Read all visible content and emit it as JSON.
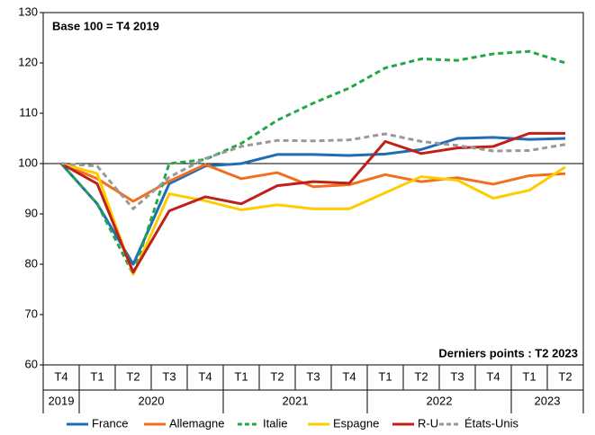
{
  "chart_data": {
    "type": "line",
    "annotations": [
      "Base 100 = T4 2019",
      "Derniers points : T2 2023"
    ],
    "categories": [
      "T4",
      "T1",
      "T2",
      "T3",
      "T4",
      "T1",
      "T2",
      "T3",
      "T4",
      "T1",
      "T2",
      "T3",
      "T4",
      "T1",
      "T2"
    ],
    "year_groups": [
      {
        "label": "2019",
        "count": 1
      },
      {
        "label": "2020",
        "count": 4
      },
      {
        "label": "2021",
        "count": 4
      },
      {
        "label": "2022",
        "count": 4
      },
      {
        "label": "2023",
        "count": 2
      }
    ],
    "ylim": [
      60,
      130
    ],
    "yticks": [
      60,
      70,
      80,
      90,
      100,
      110,
      120,
      130
    ],
    "reference_line": 100,
    "series": [
      {
        "name": "France",
        "color": "#1f6db5",
        "dashed": false,
        "values": [
          100,
          92,
          80,
          96,
          99.5,
          100,
          101.8,
          101.8,
          101.6,
          101.9,
          102.8,
          105,
          105.2,
          104.8,
          105
        ]
      },
      {
        "name": "Allemagne",
        "color": "#f07020",
        "dashed": false,
        "values": [
          100,
          97,
          92.5,
          96.5,
          99.8,
          97,
          98.2,
          95.4,
          95.8,
          97.8,
          96.4,
          97.2,
          95.9,
          97.6,
          98
        ]
      },
      {
        "name": "Italie",
        "color": "#22a846",
        "dashed": true,
        "values": [
          100,
          92,
          78,
          100,
          100.8,
          104,
          108.6,
          112,
          115,
          119,
          120.8,
          120.5,
          121.8,
          122.3,
          120
        ]
      },
      {
        "name": "Espagne",
        "color": "#ffcc00",
        "dashed": false,
        "values": [
          100,
          98,
          78,
          94,
          92.6,
          90.8,
          91.8,
          91,
          91,
          94.2,
          97.4,
          96.7,
          93.1,
          94.7,
          99.3
        ]
      },
      {
        "name": "R-U",
        "color": "#c0201a",
        "dashed": false,
        "values": [
          100,
          96,
          78.4,
          90.6,
          93.4,
          92,
          95.6,
          96.4,
          96.1,
          104.4,
          102,
          103.1,
          103.4,
          106,
          106
        ]
      },
      {
        "name": "États-Unis",
        "color": "#999999",
        "dashed": true,
        "values": [
          100,
          99.5,
          91,
          97.3,
          101,
          103.4,
          104.6,
          104.5,
          104.7,
          105.9,
          104.4,
          103.6,
          102.5,
          102.6,
          103.8
        ]
      }
    ]
  }
}
